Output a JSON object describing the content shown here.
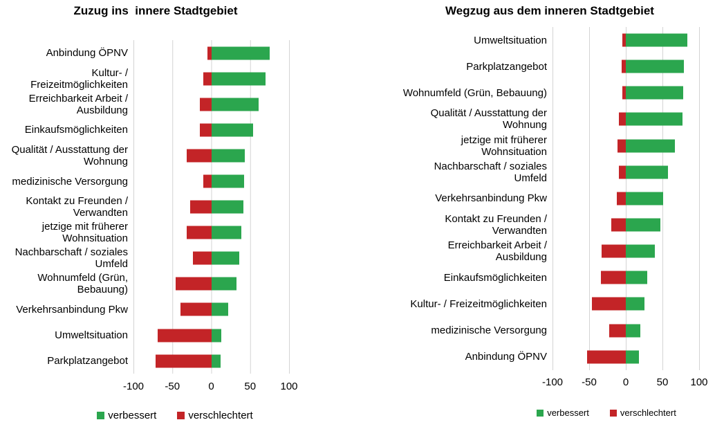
{
  "colors": {
    "green": "#2BA64E",
    "red": "#C32427",
    "gridline": "#D3D3D3",
    "text": "#000000"
  },
  "chart_data": [
    {
      "type": "bar",
      "orientation": "horizontal",
      "title": "Zuzug ins  innere Stadtgebiet",
      "xlabel": "",
      "ylabel": "",
      "xlim": [
        -100,
        100
      ],
      "xticks": [
        "-100",
        "-50",
        "0",
        "50",
        "100"
      ],
      "grid": true,
      "legend_position": "bottom",
      "legend": [
        "verbessert",
        "verschlechtert"
      ],
      "categories": [
        "Anbindung ÖPNV",
        "Kultur- / Freizeitmöglichkeiten",
        "Erreichbarkeit Arbeit / Ausbildung",
        "Einkaufsmöglichkeiten",
        "Qualität / Ausstattung der Wohnung",
        "medizinische Versorgung",
        "Kontakt zu Freunden / Verwandten",
        "jetzige mit früherer Wohnsituation",
        "Nachbarschaft / soziales Umfeld",
        "Wohnumfeld (Grün, Bebauung)",
        "Verkehrsanbindung Pkw",
        "Umweltsituation",
        "Parkplatzangebot"
      ],
      "series": [
        {
          "name": "verbessert",
          "color_key": "green",
          "values": [
            75,
            70,
            61,
            54,
            43,
            42,
            41,
            39,
            36,
            32,
            22,
            13,
            12
          ]
        },
        {
          "name": "verschlechtert",
          "color_key": "red",
          "values": [
            -5,
            -10,
            -15,
            -15,
            -32,
            -10,
            -27,
            -32,
            -24,
            -46,
            -40,
            -69,
            -72
          ]
        }
      ]
    },
    {
      "type": "bar",
      "orientation": "horizontal",
      "title": "Wegzug aus dem inneren Stadtgebiet",
      "xlabel": "",
      "ylabel": "",
      "xlim": [
        -100,
        100
      ],
      "xticks": [
        "-100",
        "-50",
        "0",
        "50",
        "100"
      ],
      "grid": true,
      "legend_position": "bottom",
      "legend": [
        "verbessert",
        "verschlechtert"
      ],
      "categories": [
        "Umweltsituation",
        "Parkplatzangebot",
        "Wohnumfeld (Grün, Bebauung)",
        "Qualität / Ausstattung der Wohnung",
        "jetzige mit früherer Wohnsituation",
        "Nachbarschaft / soziales Umfeld",
        "Verkehrsanbindung Pkw",
        "Kontakt zu Freunden / Verwandten",
        "Erreichbarkeit Arbeit / Ausbildung",
        "Einkaufsmöglichkeiten",
        "Kultur- / Freizeitmöglichkeiten",
        "medizinische Versorgung",
        "Anbindung ÖPNV"
      ],
      "series": [
        {
          "name": "verbessert",
          "color_key": "green",
          "values": [
            84,
            79,
            78,
            77,
            67,
            58,
            51,
            47,
            40,
            29,
            25,
            20,
            18
          ]
        },
        {
          "name": "verschlechtert",
          "color_key": "red",
          "values": [
            -5,
            -6,
            -5,
            -9,
            -11,
            -9,
            -12,
            -20,
            -33,
            -34,
            -46,
            -23,
            -53
          ]
        }
      ]
    }
  ]
}
